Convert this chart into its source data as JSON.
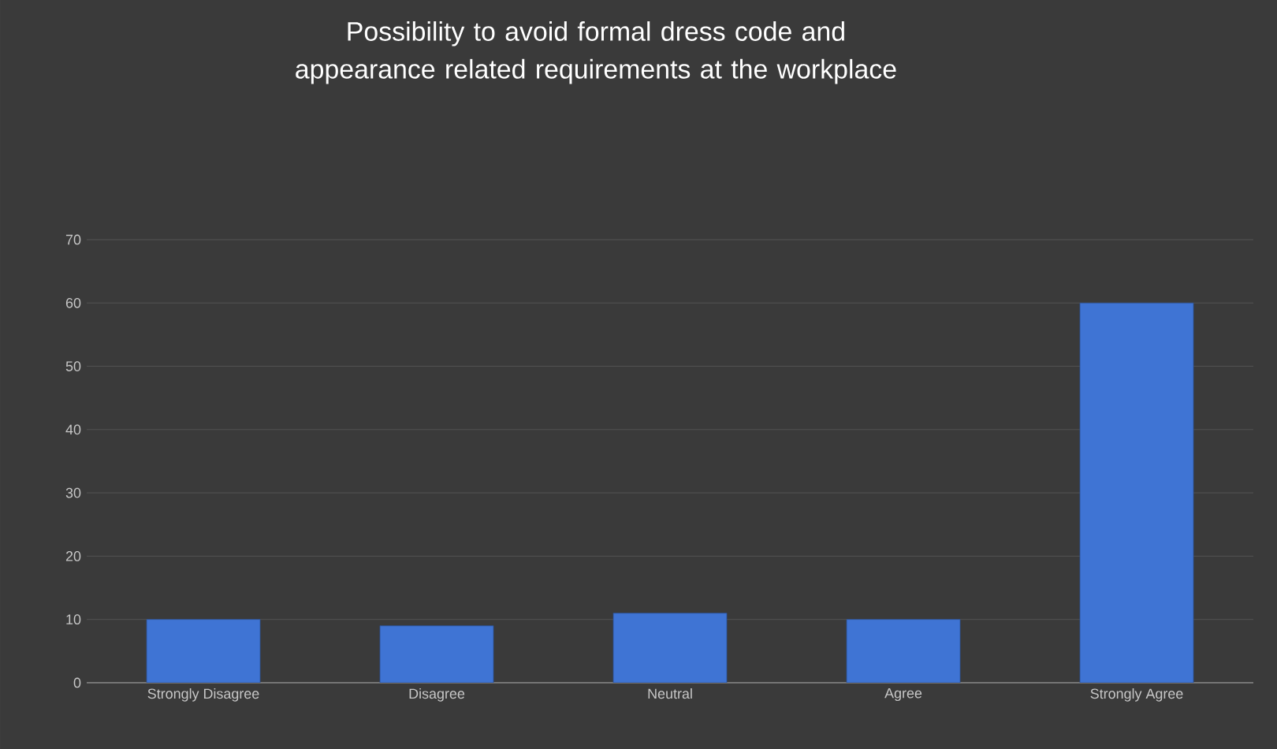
{
  "chart_data": {
    "type": "bar",
    "title": "Possibility to avoid formal dress code and appearance related requirements at the workplace",
    "categories": [
      "Strongly Disagree",
      "Disagree",
      "Neutral",
      "Agree",
      "Strongly Agree"
    ],
    "values": [
      10,
      9,
      11,
      10,
      60
    ],
    "color": "#3f74d4",
    "ylim": [
      0,
      70
    ],
    "yticks": [
      0,
      10,
      20,
      30,
      40,
      50,
      60,
      70
    ],
    "grid": "y"
  }
}
